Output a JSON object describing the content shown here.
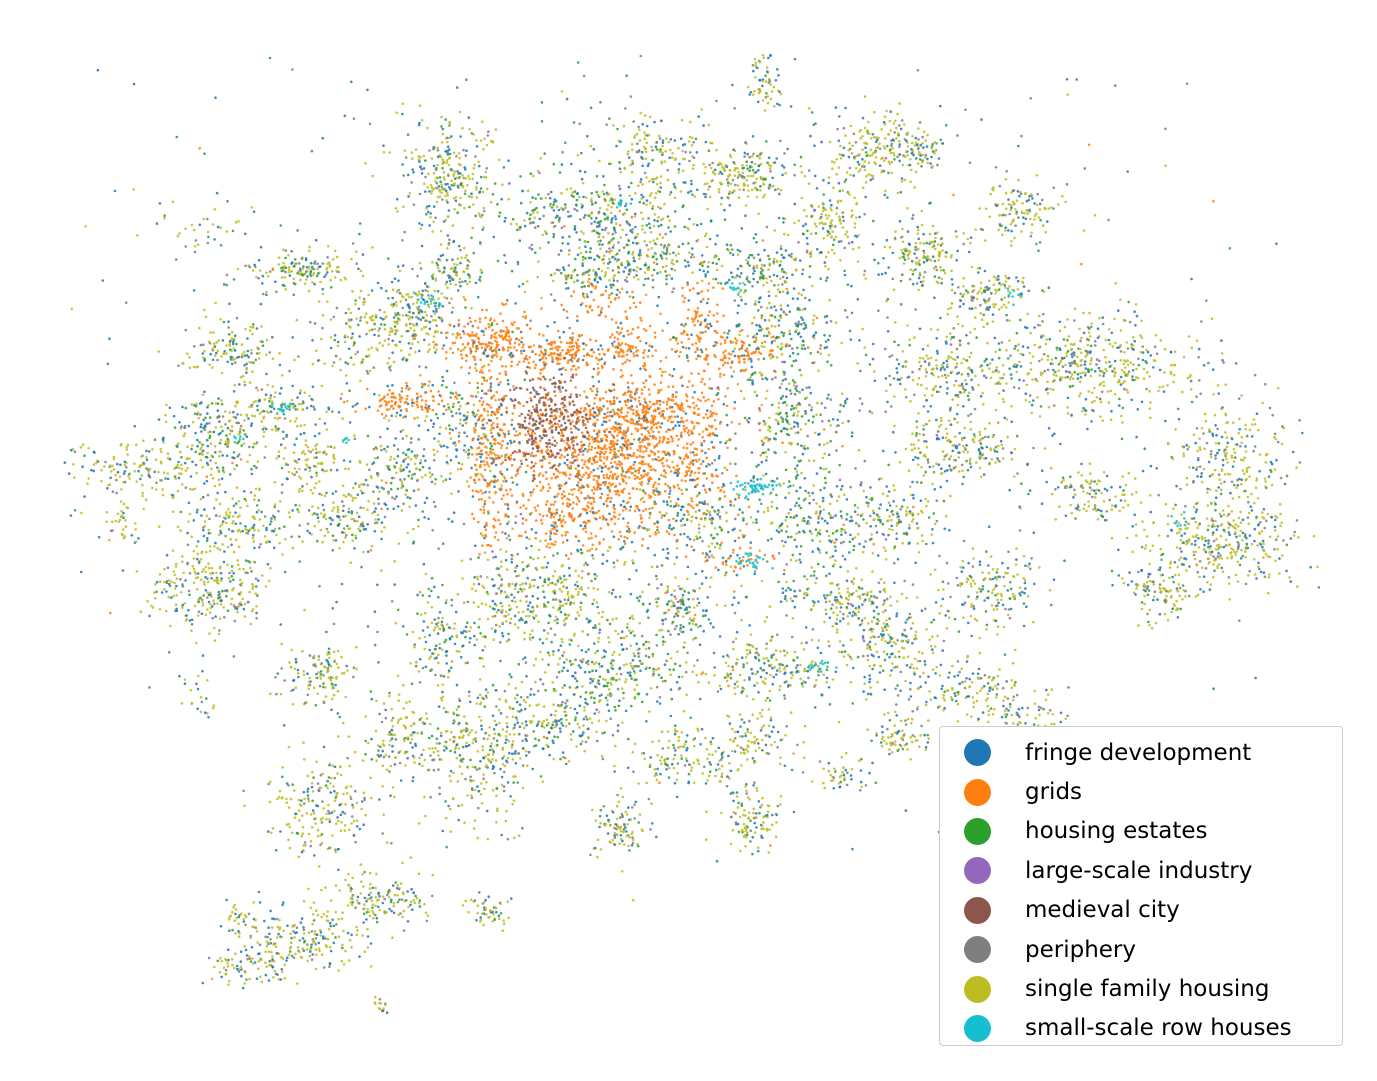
{
  "map": {
    "legend": {
      "items": [
        {
          "label": "fringe development",
          "color": "#1f77b4"
        },
        {
          "label": "grids",
          "color": "#ff7f0e"
        },
        {
          "label": "housing estates",
          "color": "#2ca02c"
        },
        {
          "label": "large-scale industry",
          "color": "#9467bd"
        },
        {
          "label": "medieval city",
          "color": "#8c564b"
        },
        {
          "label": "periphery",
          "color": "#7f7f7f"
        },
        {
          "label": "single family housing",
          "color": "#bcbd22"
        },
        {
          "label": "small-scale row houses",
          "color": "#17becf"
        }
      ]
    }
  }
}
